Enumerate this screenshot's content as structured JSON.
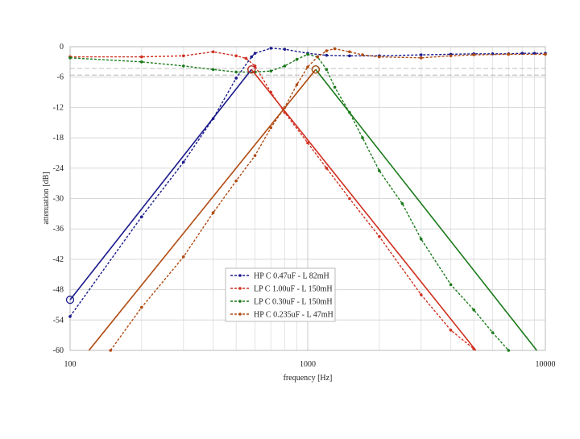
{
  "chart_data": {
    "type": "line",
    "x_label": "frequency [Hz]",
    "y_label": "attenuation [dB]",
    "xlog": true,
    "grid": true,
    "xlim": [
      100,
      10000
    ],
    "xticks": [
      100,
      1000,
      10000
    ],
    "ylim": [
      -60,
      0
    ],
    "yticks": [
      0,
      -6,
      -12,
      -18,
      -24,
      -30,
      -36,
      -42,
      -48,
      -54,
      -60
    ],
    "ref_lines": [
      -4.3,
      -5.6
    ],
    "series": [
      {
        "name": "HP C 0.47uF - L 82mH",
        "color": "#1a1a8c",
        "dashed": true,
        "x": [
          100,
          200,
          300,
          400,
          500,
          580,
          600,
          700,
          800,
          1000,
          1200,
          1500,
          2000,
          3000,
          4000,
          5000,
          6000,
          7000,
          8000,
          9000,
          10000
        ],
        "values": [
          -53.3,
          -33.6,
          -22.8,
          -14.2,
          -6.2,
          -2,
          -1.3,
          -0.3,
          -0.5,
          -1.3,
          -1.7,
          -1.8,
          -1.8,
          -1.6,
          -1.5,
          -1.4,
          -1.4,
          -1.4,
          -1.3,
          -1.3,
          -1.3
        ]
      },
      {
        "name": "LP C 1.00uF - L 150mH",
        "color": "#d03020",
        "dashed": true,
        "x": [
          100,
          200,
          300,
          400,
          500,
          550,
          600,
          700,
          800,
          1000,
          1200,
          1500,
          2000,
          3000,
          4000,
          5000
        ],
        "values": [
          -2,
          -2,
          -1.8,
          -1,
          -1.8,
          -2.3,
          -3.8,
          -9,
          -13,
          -19,
          -24,
          -30,
          -37.5,
          -49,
          -56,
          -59.7
        ]
      },
      {
        "name": "LP C 0.30uF - L 150mH",
        "color": "#1a7a1a",
        "dashed": true,
        "x": [
          100,
          200,
          300,
          400,
          500,
          600,
          700,
          800,
          900,
          1000,
          1100,
          1200,
          1300,
          1500,
          1700,
          2000,
          2500,
          3000,
          4000,
          5000,
          6000,
          7000
        ],
        "values": [
          -2.2,
          -3,
          -3.8,
          -4.5,
          -5,
          -5,
          -4.8,
          -3.8,
          -2.5,
          -1.5,
          -2,
          -4.5,
          -8,
          -13,
          -18,
          -24.5,
          -31,
          -38,
          -47,
          -52,
          -56.5,
          -60
        ]
      },
      {
        "name": "HP C 0.235uF - L 47mH",
        "color": "#b04a10",
        "dashed": true,
        "x": [
          148,
          200,
          300,
          400,
          500,
          600,
          700,
          800,
          900,
          1000,
          1100,
          1200,
          1300,
          1500,
          1700,
          2000,
          3000,
          4000,
          5000,
          7000,
          10000
        ],
        "values": [
          -60,
          -51.5,
          -41.5,
          -32.8,
          -26.5,
          -21.5,
          -16,
          -12,
          -7.5,
          -4,
          -2,
          -0.8,
          -0.4,
          -1,
          -1.6,
          -2,
          -2.2,
          -1.8,
          -1.6,
          -1.5,
          -1.5
        ]
      },
      {
        "color": "#1a1a8c",
        "dashed": false,
        "circled": [
          0,
          1
        ],
        "x": [
          100,
          580
        ],
        "values": [
          -50,
          -4.5
        ]
      },
      {
        "color": "#d03020",
        "dashed": false,
        "circled": [
          0
        ],
        "x": [
          580,
          5100
        ],
        "values": [
          -4.5,
          -60
        ]
      },
      {
        "color": "#1a7a1a",
        "dashed": false,
        "circled": [
          0
        ],
        "x": [
          1080,
          9200
        ],
        "values": [
          -4.5,
          -60
        ]
      },
      {
        "color": "#b04a10",
        "dashed": false,
        "circled": [
          1
        ],
        "x": [
          120,
          1080
        ],
        "values": [
          -60,
          -4.5
        ]
      }
    ]
  }
}
